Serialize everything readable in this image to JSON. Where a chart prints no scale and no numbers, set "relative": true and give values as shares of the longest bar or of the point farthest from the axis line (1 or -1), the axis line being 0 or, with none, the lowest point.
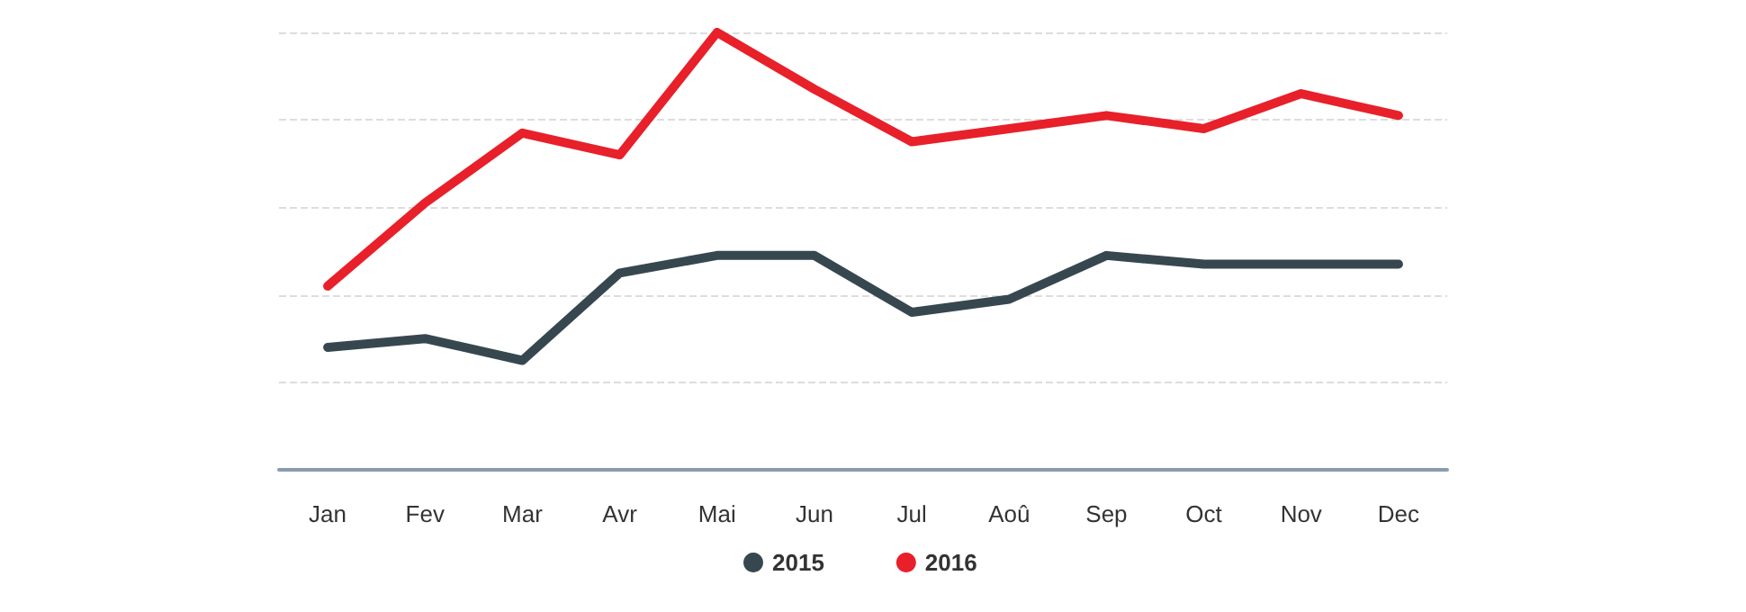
{
  "chart_data": {
    "type": "line",
    "relative": true,
    "categories": [
      "Jan",
      "Fev",
      "Mar",
      "Avr",
      "Mai",
      "Jun",
      "Jul",
      "Aoû",
      "Sep",
      "Oct",
      "Nov",
      "Dec"
    ],
    "series": [
      {
        "name": "2015",
        "color": "#37474f",
        "values": [
          0.28,
          0.3,
          0.25,
          0.45,
          0.49,
          0.49,
          0.36,
          0.39,
          0.49,
          0.47,
          0.47,
          0.47
        ]
      },
      {
        "name": "2016",
        "color": "#e8202a",
        "values": [
          0.42,
          0.61,
          0.77,
          0.72,
          1,
          0.87,
          0.75,
          0.78,
          0.81,
          0.78,
          0.86,
          0.81
        ]
      }
    ],
    "grid": "y",
    "legend": "bottom",
    "marker": "none",
    "line_style": "solid"
  }
}
